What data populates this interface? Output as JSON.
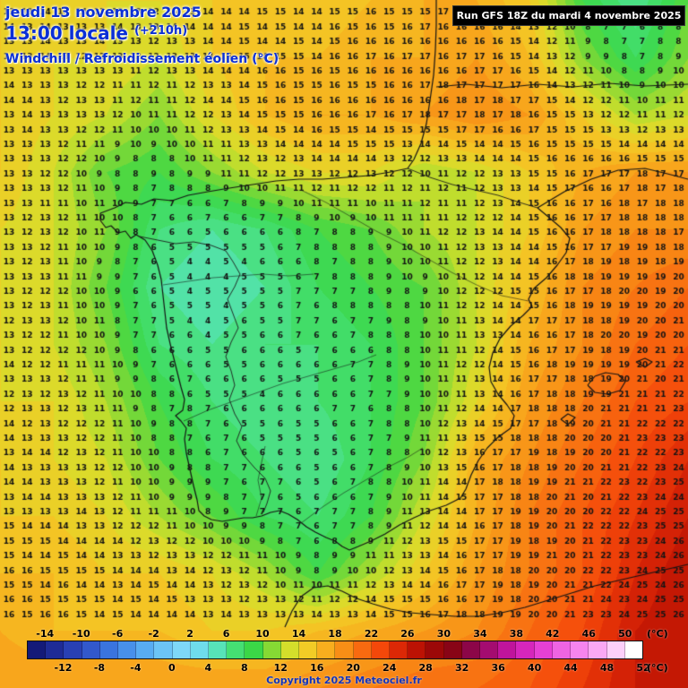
{
  "header": {
    "date_line": "jeudi 13 novembre 2025",
    "time_line": "13:00 locale",
    "offset": "(+210h)",
    "title": "Windchill / Refroidissement éolien (°C)",
    "run_info": "Run GFS 18Z du mardi 4 novembre 2025"
  },
  "footer": {
    "copyright": "Copyright 2025 Meteociel.fr",
    "unit_label": "(°C)"
  },
  "colorbar": {
    "min": -16,
    "max": 52,
    "step": 2,
    "top_labels": [
      "-14",
      "-10",
      "-6",
      "-2",
      "2",
      "6",
      "10",
      "14",
      "18",
      "22",
      "26",
      "30",
      "34",
      "38",
      "42",
      "46",
      "50"
    ],
    "bottom_labels": [
      "-12",
      "-8",
      "-4",
      "0",
      "4",
      "8",
      "12",
      "16",
      "20",
      "24",
      "28",
      "32",
      "36",
      "40",
      "44",
      "48",
      "52"
    ],
    "colors": [
      "#141a78",
      "#1e2b96",
      "#2840b4",
      "#3258cc",
      "#3a74de",
      "#4890ea",
      "#58acf2",
      "#6cc4f6",
      "#7ed8f8",
      "#6fdcec",
      "#57e3b8",
      "#45df73",
      "#3bd747",
      "#86d934",
      "#d4de2b",
      "#f2cc26",
      "#f8ae1e",
      "#f88e16",
      "#f86a10",
      "#f4480a",
      "#dc2806",
      "#bc1204",
      "#9c0808",
      "#880416",
      "#8c0648",
      "#a40c70",
      "#c0149c",
      "#d626bc",
      "#e640d4",
      "#ee64e2",
      "#f684ee",
      "#faa8f4",
      "#fdd0fa",
      "#ffffff"
    ]
  },
  "chart_data": {
    "type": "heatmap",
    "title": "Windchill / Refroidissement éolien (°C)",
    "units": "°C",
    "valid": "jeudi 13 novembre 2025 13:00 locale (+210h)",
    "model_run": "Run GFS 18Z du mardi 4 novembre 2025",
    "region": "Iberian Peninsula (Spain / Portugal, Bay of Biscay, western Mediterranean, North Africa)",
    "value_range_shown": [
      2,
      26
    ],
    "legend_range": [
      -16,
      52
    ],
    "grid_rows": 13,
    "grid_cols": 14,
    "values": [
      [
        14,
        13,
        13,
        13,
        14,
        14,
        14,
        15,
        16,
        16,
        14,
        8,
        5,
        9
      ],
      [
        14,
        13,
        13,
        12,
        14,
        15,
        15,
        16,
        16,
        17,
        15,
        10,
        7,
        10
      ],
      [
        14,
        13,
        12,
        10,
        13,
        15,
        16,
        16,
        17,
        18,
        17,
        14,
        11,
        12
      ],
      [
        14,
        12,
        9,
        8,
        10,
        12,
        13,
        13,
        11,
        12,
        14,
        16,
        17,
        17
      ],
      [
        13,
        12,
        10,
        6,
        5,
        6,
        8,
        9,
        11,
        12,
        14,
        17,
        18,
        18
      ],
      [
        13,
        12,
        9,
        5,
        4,
        5,
        7,
        8,
        9,
        12,
        15,
        18,
        19,
        20
      ],
      [
        13,
        12,
        10,
        6,
        5,
        6,
        6,
        7,
        9,
        12,
        16,
        18,
        20,
        21
      ],
      [
        13,
        13,
        11,
        8,
        6,
        5,
        6,
        7,
        9,
        13,
        17,
        19,
        21,
        22
      ],
      [
        14,
        13,
        12,
        9,
        7,
        6,
        5,
        7,
        10,
        16,
        18,
        20,
        22,
        24
      ],
      [
        14,
        14,
        13,
        11,
        9,
        7,
        6,
        8,
        12,
        16,
        19,
        21,
        23,
        25
      ],
      [
        15,
        15,
        14,
        14,
        13,
        11,
        8,
        11,
        14,
        17,
        19,
        21,
        24,
        26
      ],
      [
        16,
        15,
        15,
        15,
        14,
        14,
        15,
        16,
        17,
        18,
        20,
        22,
        25,
        26
      ],
      [
        17,
        17,
        17,
        17,
        17,
        17,
        18,
        19,
        20,
        20,
        21,
        23,
        25,
        26
      ]
    ]
  }
}
